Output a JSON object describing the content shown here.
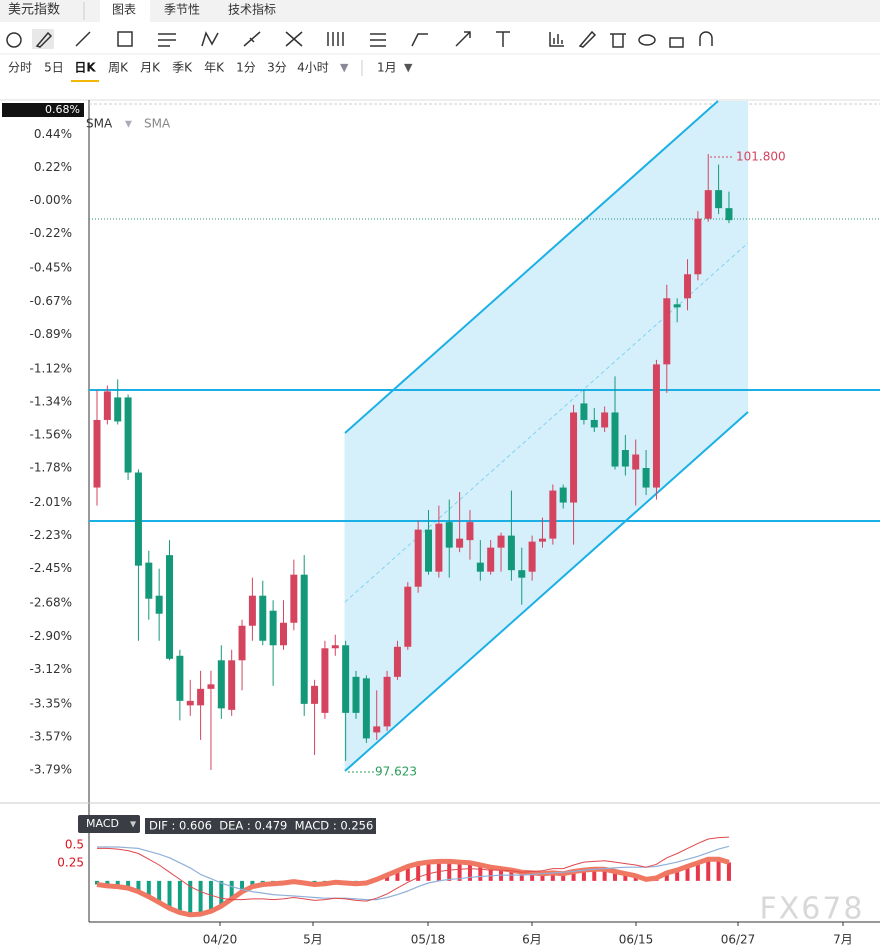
{
  "header": {
    "title": "美元指数",
    "tabs": [
      "图表",
      "季节性",
      "技术指标"
    ]
  },
  "periods": [
    "分时",
    "5日",
    "日K",
    "周K",
    "月K",
    "季K",
    "年K",
    "1分",
    "3分",
    "4小时"
  ],
  "range": "1月",
  "chart_data": [
    {
      "type": "candlestick",
      "indicators": [
        "SMA",
        "SMA"
      ],
      "price_tag": {
        "value": 0.68,
        "label": "0.68%"
      },
      "ylim": [
        -3.99,
        0.67
      ],
      "yticks": [
        {
          "value": 0.44,
          "label": "0.44%"
        },
        {
          "value": 0.22,
          "label": "0.22%"
        },
        {
          "value": 0,
          "label": "-0.00%"
        },
        {
          "value": -0.22,
          "label": "-0.22%"
        },
        {
          "value": -0.45,
          "label": "-0.45%"
        },
        {
          "value": -0.67,
          "label": "-0.67%"
        },
        {
          "value": -0.89,
          "label": "-0.89%"
        },
        {
          "value": -1.12,
          "label": "-1.12%"
        },
        {
          "value": -1.34,
          "label": "-1.34%"
        },
        {
          "value": -1.56,
          "label": "-1.56%"
        },
        {
          "value": -1.78,
          "label": "-1.78%"
        },
        {
          "value": -2.01,
          "label": "-2.01%"
        },
        {
          "value": -2.23,
          "label": "-2.23%"
        },
        {
          "value": -2.45,
          "label": "-2.45%"
        },
        {
          "value": -2.68,
          "label": "-2.68%"
        },
        {
          "value": -2.9,
          "label": "-2.90%"
        },
        {
          "value": -3.12,
          "label": "-3.12%"
        },
        {
          "value": -3.35,
          "label": "-3.35%"
        },
        {
          "value": -3.57,
          "label": "-3.57%"
        },
        {
          "value": -3.79,
          "label": "-3.79%"
        }
      ],
      "up_color": "#d5445f",
      "down_color": "#13997a",
      "open": [
        -1.91,
        -1.46,
        -1.31,
        -1.31,
        -1.81,
        -2.41,
        -2.63,
        -2.36,
        -3.03,
        -3.36,
        -3.36,
        -3.25,
        -3.06,
        -3.39,
        -3.06,
        -2.83,
        -2.63,
        -2.73,
        -2.96,
        -2.81,
        -2.49,
        -3.35,
        -3.41,
        -2.98,
        -2.96,
        -3.17,
        -3.18,
        -3.54,
        -3.5,
        -3.17,
        -2.97,
        -2.57,
        -2.19,
        -2.47,
        -2.14,
        -2.31,
        -2.26,
        -2.41,
        -2.47,
        -2.31,
        -2.23,
        -2.46,
        -2.47,
        -2.27,
        -2.25,
        -1.91,
        -2.01,
        -1.35,
        -1.46,
        -1.51,
        -1.41,
        -1.66,
        -1.79,
        -1.78,
        -1.91,
        -1.09,
        -0.69,
        -0.65,
        -0.49,
        -0.12,
        0.07,
        -0.05
      ],
      "close": [
        -1.46,
        -1.27,
        -1.47,
        -1.81,
        -2.43,
        -2.65,
        -2.75,
        -3.05,
        -3.33,
        -3.33,
        -3.25,
        -3.22,
        -3.38,
        -3.06,
        -2.83,
        -2.63,
        -2.93,
        -2.96,
        -2.81,
        -2.49,
        -3.35,
        -3.23,
        -2.98,
        -2.96,
        -3.41,
        -3.41,
        -3.58,
        -3.5,
        -3.17,
        -2.97,
        -2.57,
        -2.19,
        -2.47,
        -2.15,
        -2.31,
        -2.25,
        -2.14,
        -2.47,
        -2.31,
        -2.23,
        -2.46,
        -2.51,
        -2.27,
        -2.25,
        -1.93,
        -2.01,
        -1.41,
        -1.46,
        -1.51,
        -1.41,
        -1.77,
        -1.77,
        -1.69,
        -1.91,
        -1.09,
        -0.65,
        -0.71,
        -0.49,
        -0.12,
        0.07,
        -0.05,
        -0.13
      ],
      "high": [
        -1.26,
        -1.23,
        -1.19,
        -1.29,
        -1.79,
        -2.33,
        -2.45,
        -2.26,
        -2.99,
        -3.19,
        -3.13,
        -3.13,
        -2.96,
        -2.99,
        -2.79,
        -2.51,
        -2.53,
        -2.66,
        -2.66,
        -2.39,
        -2.36,
        -3.19,
        -2.93,
        -2.89,
        -2.93,
        -3.13,
        -3.16,
        -3.26,
        -3.13,
        -2.93,
        -2.54,
        -2.13,
        -2.06,
        -2.03,
        -1.99,
        -1.94,
        -2.06,
        -2.26,
        -2.26,
        -2.21,
        -1.93,
        -2.31,
        -2.23,
        -2.11,
        -1.89,
        -1.89,
        -1.36,
        -1.26,
        -1.38,
        -1.37,
        -1.17,
        -1.56,
        -1.59,
        -1.66,
        -1.06,
        -0.56,
        -0.65,
        -0.39,
        -0.07,
        0.31,
        0.24,
        0.06
      ],
      "low": [
        -2.03,
        -1.49,
        -1.49,
        -1.86,
        -2.93,
        -2.79,
        -2.93,
        -3.06,
        -3.46,
        -3.43,
        -3.59,
        -3.79,
        -3.45,
        -3.43,
        -3.26,
        -2.93,
        -2.96,
        -3.23,
        -2.99,
        -2.86,
        -3.43,
        -3.69,
        -3.45,
        -3.03,
        -3.73,
        -3.45,
        -3.61,
        -3.59,
        -3.53,
        -3.19,
        -2.99,
        -2.61,
        -2.49,
        -2.51,
        -2.51,
        -2.34,
        -2.39,
        -2.53,
        -2.49,
        -2.47,
        -2.53,
        -2.69,
        -2.53,
        -2.31,
        -2.29,
        -2.05,
        -2.29,
        -1.49,
        -1.54,
        -1.54,
        -1.79,
        -1.83,
        -2.03,
        -1.96,
        -1.99,
        -1.28,
        -0.81,
        -0.73,
        -0.53,
        -0.14,
        -0.09,
        -0.15
      ],
      "annotations": [
        "101.800",
        "97.623"
      ]
    },
    {
      "type": "macd",
      "name": "MACD",
      "legend": "DIF : 0.606  DEA : 0.479  MACD : 0.256",
      "ylim": [
        -0.57,
        1.01
      ],
      "yticks": [
        0.5,
        0.25
      ],
      "hist_up_color": "#e8364a",
      "hist_down_color": "#14a085",
      "envelope_color": "#f07862",
      "dif_color": "#e0474c",
      "dea_color": "#8fb0d8",
      "hist": [
        -0.05,
        -0.07,
        -0.08,
        -0.1,
        -0.15,
        -0.22,
        -0.3,
        -0.38,
        -0.44,
        -0.47,
        -0.46,
        -0.42,
        -0.35,
        -0.25,
        -0.15,
        -0.08,
        -0.05,
        -0.04,
        -0.03,
        -0.01,
        -0.03,
        -0.05,
        -0.04,
        -0.02,
        -0.03,
        -0.04,
        -0.03,
        0.02,
        0.08,
        0.14,
        0.2,
        0.24,
        0.26,
        0.27,
        0.27,
        0.26,
        0.25,
        0.22,
        0.19,
        0.17,
        0.15,
        0.12,
        0.11,
        0.1,
        0.11,
        0.1,
        0.13,
        0.15,
        0.16,
        0.16,
        0.13,
        0.1,
        0.07,
        0.02,
        0.04,
        0.11,
        0.15,
        0.2,
        0.25,
        0.3,
        0.3,
        0.256
      ],
      "dif": [
        0.45,
        0.45,
        0.44,
        0.42,
        0.38,
        0.3,
        0.22,
        0.12,
        0.02,
        -0.08,
        -0.15,
        -0.2,
        -0.24,
        -0.26,
        -0.26,
        -0.25,
        -0.25,
        -0.26,
        -0.25,
        -0.23,
        -0.25,
        -0.27,
        -0.26,
        -0.24,
        -0.25,
        -0.27,
        -0.28,
        -0.24,
        -0.18,
        -0.1,
        -0.02,
        0.05,
        0.1,
        0.13,
        0.15,
        0.16,
        0.17,
        0.16,
        0.15,
        0.15,
        0.14,
        0.12,
        0.13,
        0.14,
        0.17,
        0.17,
        0.22,
        0.26,
        0.27,
        0.28,
        0.26,
        0.24,
        0.22,
        0.19,
        0.23,
        0.32,
        0.38,
        0.45,
        0.52,
        0.58,
        0.6,
        0.606
      ],
      "dea": [
        0.47,
        0.47,
        0.47,
        0.46,
        0.45,
        0.41,
        0.37,
        0.32,
        0.25,
        0.18,
        0.09,
        0.03,
        -0.03,
        -0.08,
        -0.12,
        -0.15,
        -0.17,
        -0.19,
        -0.2,
        -0.21,
        -0.22,
        -0.23,
        -0.24,
        -0.24,
        -0.24,
        -0.25,
        -0.26,
        -0.26,
        -0.23,
        -0.19,
        -0.14,
        -0.08,
        -0.03,
        0,
        0.02,
        0.03,
        0.05,
        0.06,
        0.07,
        0.08,
        0.08,
        0.08,
        0.09,
        0.1,
        0.11,
        0.12,
        0.13,
        0.15,
        0.16,
        0.17,
        0.18,
        0.19,
        0.19,
        0.19,
        0.2,
        0.23,
        0.26,
        0.3,
        0.34,
        0.39,
        0.44,
        0.479
      ]
    }
  ],
  "x_axis_labels": [
    "04/20",
    "5月",
    "05/18",
    "6月",
    "06/15",
    "06/27",
    "7月"
  ],
  "watermark": "FX678"
}
